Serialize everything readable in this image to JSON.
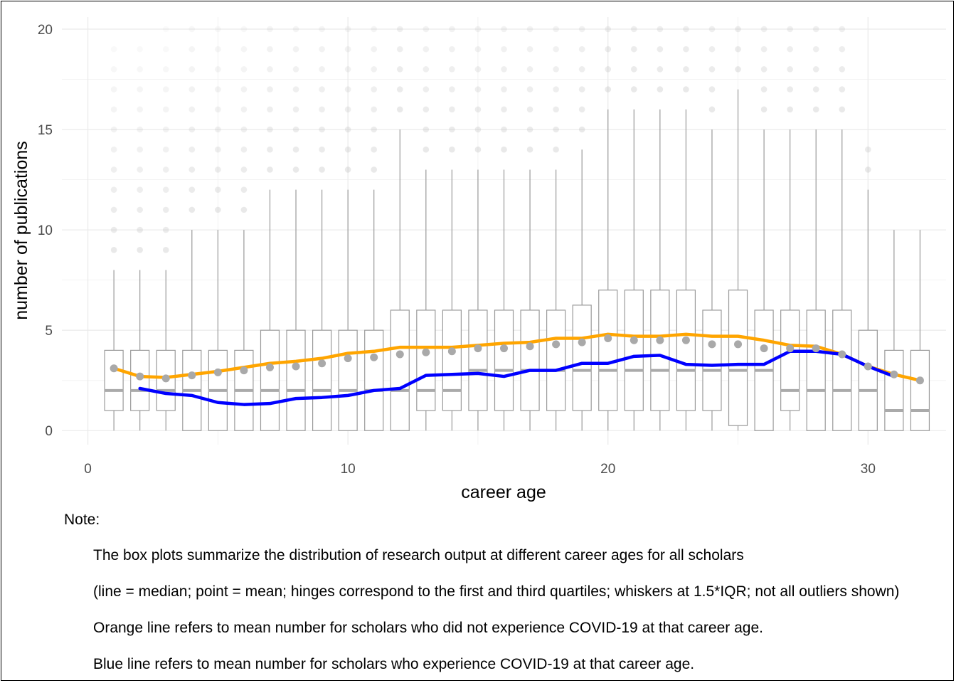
{
  "chart_data": {
    "type": "box",
    "xlabel": "career age",
    "ylabel": "number of publications",
    "xlim": [
      -1,
      33
    ],
    "ylim": [
      -0.7,
      20.6
    ],
    "x_ticks": [
      0,
      10,
      20,
      30
    ],
    "y_ticks": [
      0,
      5,
      10,
      15,
      20
    ],
    "grid": true,
    "colors": {
      "box": "#9a9a9a",
      "median": "#aaaaaa",
      "mean_point": "#a9a9a9",
      "orange": "#ffa500",
      "blue": "#0000ff",
      "outlier": "#b0b0b0",
      "grid": "#ebebeb"
    },
    "boxes": [
      {
        "age": 1,
        "q1": 1,
        "median": 2,
        "q3": 4,
        "lower": 0,
        "upper": 8,
        "mean": 3.1
      },
      {
        "age": 2,
        "q1": 1,
        "median": 2,
        "q3": 4,
        "lower": 0,
        "upper": 8,
        "mean": 2.7
      },
      {
        "age": 3,
        "q1": 1,
        "median": 2,
        "q3": 4,
        "lower": 0,
        "upper": 8,
        "mean": 2.6
      },
      {
        "age": 4,
        "q1": 0,
        "median": 2,
        "q3": 4,
        "lower": 0,
        "upper": 10,
        "mean": 2.75
      },
      {
        "age": 5,
        "q1": 0,
        "median": 2,
        "q3": 4,
        "lower": 0,
        "upper": 10,
        "mean": 2.9
      },
      {
        "age": 6,
        "q1": 0,
        "median": 2,
        "q3": 4,
        "lower": 0,
        "upper": 10,
        "mean": 3.0
      },
      {
        "age": 7,
        "q1": 0,
        "median": 2,
        "q3": 5,
        "lower": 0,
        "upper": 12,
        "mean": 3.15
      },
      {
        "age": 8,
        "q1": 0,
        "median": 2,
        "q3": 5,
        "lower": 0,
        "upper": 12,
        "mean": 3.2
      },
      {
        "age": 9,
        "q1": 0,
        "median": 2,
        "q3": 5,
        "lower": 0,
        "upper": 12,
        "mean": 3.35
      },
      {
        "age": 10,
        "q1": 0,
        "median": 2,
        "q3": 5,
        "lower": 0,
        "upper": 12,
        "mean": 3.6
      },
      {
        "age": 11,
        "q1": 0,
        "median": 2,
        "q3": 5,
        "lower": 0,
        "upper": 12,
        "mean": 3.65
      },
      {
        "age": 12,
        "q1": 0,
        "median": 2,
        "q3": 6,
        "lower": 0,
        "upper": 15,
        "mean": 3.8
      },
      {
        "age": 13,
        "q1": 1,
        "median": 2,
        "q3": 6,
        "lower": 0,
        "upper": 13,
        "mean": 3.9
      },
      {
        "age": 14,
        "q1": 1,
        "median": 2,
        "q3": 6,
        "lower": 0,
        "upper": 13,
        "mean": 3.95
      },
      {
        "age": 15,
        "q1": 1,
        "median": 3,
        "q3": 6,
        "lower": 0,
        "upper": 13,
        "mean": 4.1
      },
      {
        "age": 16,
        "q1": 1,
        "median": 3,
        "q3": 6,
        "lower": 0,
        "upper": 13,
        "mean": 4.1
      },
      {
        "age": 17,
        "q1": 1,
        "median": 3,
        "q3": 6,
        "lower": 0,
        "upper": 13,
        "mean": 4.2
      },
      {
        "age": 18,
        "q1": 1,
        "median": 3,
        "q3": 6,
        "lower": 0,
        "upper": 13,
        "mean": 4.3
      },
      {
        "age": 19,
        "q1": 1,
        "median": 3,
        "q3": 6.25,
        "lower": 0,
        "upper": 14,
        "mean": 4.4
      },
      {
        "age": 20,
        "q1": 1,
        "median": 3,
        "q3": 7,
        "lower": 0,
        "upper": 16,
        "mean": 4.6
      },
      {
        "age": 21,
        "q1": 1,
        "median": 3,
        "q3": 7,
        "lower": 0,
        "upper": 16,
        "mean": 4.5
      },
      {
        "age": 22,
        "q1": 1,
        "median": 3,
        "q3": 7,
        "lower": 0,
        "upper": 16,
        "mean": 4.5
      },
      {
        "age": 23,
        "q1": 1,
        "median": 3,
        "q3": 7,
        "lower": 0,
        "upper": 16,
        "mean": 4.5
      },
      {
        "age": 24,
        "q1": 1,
        "median": 3,
        "q3": 6,
        "lower": 0,
        "upper": 15,
        "mean": 4.3
      },
      {
        "age": 25,
        "q1": 0.25,
        "median": 3,
        "q3": 7,
        "lower": 0,
        "upper": 17,
        "mean": 4.3
      },
      {
        "age": 26,
        "q1": 0,
        "median": 3,
        "q3": 6,
        "lower": 0,
        "upper": 15,
        "mean": 4.1
      },
      {
        "age": 27,
        "q1": 1,
        "median": 2,
        "q3": 6,
        "lower": 0,
        "upper": 15,
        "mean": 4.1
      },
      {
        "age": 28,
        "q1": 0,
        "median": 2,
        "q3": 6,
        "lower": 0,
        "upper": 15,
        "mean": 4.1
      },
      {
        "age": 29,
        "q1": 0,
        "median": 2,
        "q3": 6,
        "lower": 0,
        "upper": 15,
        "mean": 3.8
      },
      {
        "age": 30,
        "q1": 0,
        "median": 2,
        "q3": 5,
        "lower": 0,
        "upper": 12,
        "mean": 3.2
      },
      {
        "age": 31,
        "q1": 0,
        "median": 1,
        "q3": 4,
        "lower": 0,
        "upper": 10,
        "mean": 2.8
      },
      {
        "age": 32,
        "q1": 0,
        "median": 1,
        "q3": 4,
        "lower": 0,
        "upper": 10,
        "mean": 2.5
      }
    ],
    "series": [
      {
        "color": "#ffa500",
        "x": [
          1,
          2,
          3,
          4,
          5,
          6,
          7,
          8,
          9,
          10,
          11,
          12,
          13,
          14,
          15,
          16,
          17,
          18,
          19,
          20,
          21,
          22,
          23,
          24,
          25,
          26,
          27,
          28,
          29,
          30,
          31,
          32
        ],
        "y": [
          3.1,
          2.7,
          2.65,
          2.8,
          2.95,
          3.15,
          3.35,
          3.45,
          3.6,
          3.85,
          3.95,
          4.15,
          4.15,
          4.15,
          4.25,
          4.35,
          4.4,
          4.6,
          4.6,
          4.8,
          4.7,
          4.7,
          4.8,
          4.7,
          4.7,
          4.5,
          4.25,
          4.2,
          3.8,
          3.2,
          2.8,
          2.5
        ]
      },
      {
        "color": "#0000ff",
        "x": [
          2,
          3,
          4,
          5,
          6,
          7,
          8,
          9,
          10,
          11,
          12,
          13,
          14,
          15,
          16,
          17,
          18,
          19,
          20,
          21,
          22,
          23,
          24,
          25,
          26,
          27,
          28,
          29,
          30,
          31
        ],
        "y": [
          2.1,
          1.85,
          1.75,
          1.4,
          1.3,
          1.35,
          1.6,
          1.65,
          1.75,
          2.0,
          2.1,
          2.75,
          2.8,
          2.85,
          2.7,
          3.0,
          3.0,
          3.35,
          3.35,
          3.7,
          3.75,
          3.3,
          3.25,
          3.3,
          3.3,
          3.95,
          3.95,
          3.8,
          3.2,
          2.7
        ]
      }
    ],
    "outliers": [
      {
        "age": 1,
        "from": 9,
        "to": 19
      },
      {
        "age": 2,
        "from": 9,
        "to": 19
      },
      {
        "age": 3,
        "from": 9,
        "to": 20
      },
      {
        "age": 4,
        "from": 11,
        "to": 20
      },
      {
        "age": 5,
        "from": 11,
        "to": 20
      },
      {
        "age": 6,
        "from": 11,
        "to": 20
      },
      {
        "age": 7,
        "from": 13,
        "to": 20
      },
      {
        "age": 8,
        "from": 13,
        "to": 20
      },
      {
        "age": 9,
        "from": 13,
        "to": 20
      },
      {
        "age": 10,
        "from": 13,
        "to": 20
      },
      {
        "age": 11,
        "from": 13,
        "to": 20
      },
      {
        "age": 12,
        "from": 16,
        "to": 20
      },
      {
        "age": 13,
        "from": 14,
        "to": 20
      },
      {
        "age": 14,
        "from": 14,
        "to": 20
      },
      {
        "age": 15,
        "from": 14,
        "to": 20
      },
      {
        "age": 16,
        "from": 14,
        "to": 20
      },
      {
        "age": 17,
        "from": 14,
        "to": 20
      },
      {
        "age": 18,
        "from": 14,
        "to": 20
      },
      {
        "age": 19,
        "from": 15,
        "to": 20
      },
      {
        "age": 20,
        "from": 17,
        "to": 20
      },
      {
        "age": 21,
        "from": 17,
        "to": 20
      },
      {
        "age": 22,
        "from": 17,
        "to": 20
      },
      {
        "age": 23,
        "from": 17,
        "to": 20
      },
      {
        "age": 24,
        "from": 16,
        "to": 20
      },
      {
        "age": 25,
        "from": 18,
        "to": 20
      },
      {
        "age": 26,
        "from": 16,
        "to": 20
      },
      {
        "age": 27,
        "from": 16,
        "to": 20
      },
      {
        "age": 28,
        "from": 16,
        "to": 20
      },
      {
        "age": 29,
        "from": 16,
        "to": 20
      },
      {
        "age": 30,
        "from": 13,
        "to": 14
      }
    ]
  },
  "note": {
    "title": "Note:",
    "lines": [
      "The box plots summarize the distribution of research output at different career ages for all scholars",
      "(line = median; point = mean; hinges correspond to the first and third quartiles; whiskers at 1.5*IQR; not all outliers shown)",
      "Orange line refers to mean number for scholars who did not experience COVID-19 at that career age.",
      "Blue line refers to mean number for scholars who experience COVID-19 at that career age."
    ]
  }
}
